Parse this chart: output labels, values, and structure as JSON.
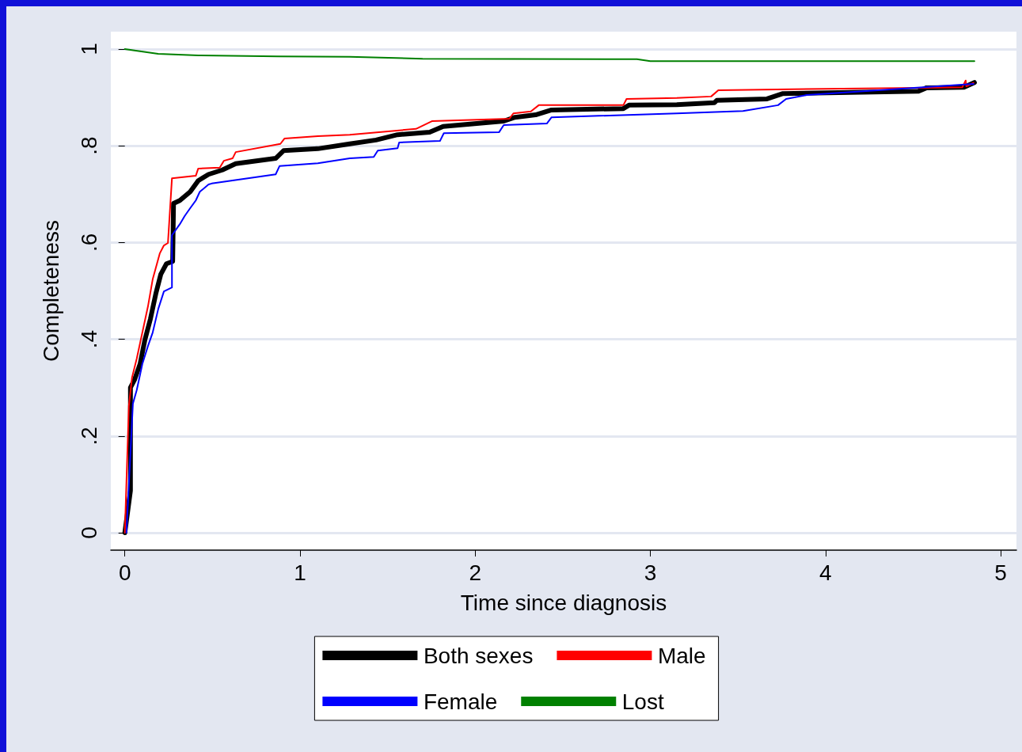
{
  "chart_data": {
    "type": "line",
    "xlabel": "Time since diagnosis",
    "ylabel": "Completeness",
    "xlim": [
      -0.08,
      5.09
    ],
    "xticks": [
      0,
      1,
      2,
      3,
      4,
      5
    ],
    "ylim": [
      -0.036,
      1.036
    ],
    "yticks": [
      {
        "value": 0,
        "label": "0"
      },
      {
        "value": 0.2,
        "label": ".2"
      },
      {
        "value": 0.4,
        "label": ".4"
      },
      {
        "value": 0.6,
        "label": ".6"
      },
      {
        "value": 0.8,
        "label": ".8"
      },
      {
        "value": 1,
        "label": "1"
      }
    ],
    "grid": "y",
    "legend": "bottom",
    "marker": "none",
    "line_style": "solid",
    "series": [
      {
        "name": "Both sexes",
        "color": "#000000",
        "x": [
          0,
          0.032,
          0.032,
          0.055,
          0.087,
          0.114,
          0.146,
          0.178,
          0.205,
          0.237,
          0.273,
          0.278,
          0.314,
          0.373,
          0.419,
          0.478,
          0.556,
          0.633,
          0.861,
          0.906,
          1.102,
          1.284,
          1.434,
          1.557,
          1.74,
          1.817,
          2.163,
          2.227,
          2.345,
          2.436,
          2.846,
          2.878,
          3.151,
          3.365,
          3.379,
          3.666,
          3.757,
          4.531,
          4.577,
          4.79,
          4.85
        ],
        "values": [
          0,
          0.087,
          0.3,
          0.316,
          0.349,
          0.398,
          0.442,
          0.496,
          0.534,
          0.556,
          0.561,
          0.681,
          0.687,
          0.705,
          0.728,
          0.741,
          0.75,
          0.763,
          0.774,
          0.79,
          0.794,
          0.804,
          0.812,
          0.823,
          0.828,
          0.84,
          0.851,
          0.859,
          0.864,
          0.874,
          0.877,
          0.884,
          0.885,
          0.889,
          0.894,
          0.897,
          0.908,
          0.913,
          0.92,
          0.921,
          0.931
        ]
      },
      {
        "name": "Male",
        "color": "#ff0000",
        "x": [
          0,
          0.023,
          0.041,
          0.068,
          0.1,
          0.132,
          0.159,
          0.2,
          0.223,
          0.246,
          0.269,
          0.405,
          0.419,
          0.542,
          0.565,
          0.615,
          0.633,
          0.888,
          0.911,
          1.102,
          1.284,
          1.662,
          1.753,
          2.195,
          2.218,
          2.318,
          2.363,
          2.846,
          2.864,
          3.151,
          3.347,
          3.388,
          4.531,
          4.781,
          4.8,
          4.804,
          4.845
        ],
        "values": [
          0,
          0.262,
          0.321,
          0.36,
          0.414,
          0.468,
          0.524,
          0.578,
          0.594,
          0.599,
          0.733,
          0.738,
          0.753,
          0.755,
          0.769,
          0.774,
          0.787,
          0.804,
          0.815,
          0.82,
          0.823,
          0.835,
          0.851,
          0.856,
          0.867,
          0.871,
          0.884,
          0.884,
          0.897,
          0.899,
          0.902,
          0.915,
          0.92,
          0.921,
          0.935,
          0.923,
          0.93
        ]
      },
      {
        "name": "Female",
        "color": "#0000ff",
        "x": [
          0.009,
          0.032,
          0.046,
          0.068,
          0.1,
          0.132,
          0.159,
          0.191,
          0.223,
          0.269,
          0.269,
          0.314,
          0.342,
          0.373,
          0.405,
          0.428,
          0.478,
          0.496,
          0.861,
          0.883,
          1.102,
          1.284,
          1.421,
          1.444,
          1.557,
          1.566,
          1.799,
          1.821,
          2.136,
          2.163,
          2.409,
          2.436,
          3.151,
          3.529,
          3.729,
          3.775,
          3.893,
          4.845
        ],
        "values": [
          0,
          0.164,
          0.267,
          0.295,
          0.349,
          0.386,
          0.414,
          0.463,
          0.499,
          0.507,
          0.615,
          0.638,
          0.655,
          0.671,
          0.687,
          0.705,
          0.72,
          0.722,
          0.741,
          0.758,
          0.764,
          0.774,
          0.777,
          0.79,
          0.795,
          0.807,
          0.81,
          0.826,
          0.828,
          0.843,
          0.846,
          0.859,
          0.867,
          0.872,
          0.884,
          0.897,
          0.905,
          0.928
        ]
      },
      {
        "name": "Lost",
        "color": "#008000",
        "x": [
          0,
          0.055,
          0.19,
          0.42,
          0.874,
          1.284,
          1.7,
          2.923,
          3.0,
          4.85
        ],
        "values": [
          1,
          0.997,
          0.99,
          0.987,
          0.985,
          0.984,
          0.98,
          0.979,
          0.975,
          0.975
        ]
      }
    ]
  }
}
